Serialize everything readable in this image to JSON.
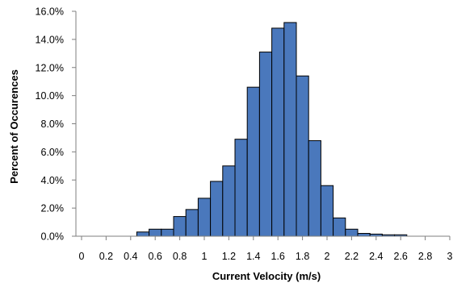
{
  "chart_data": {
    "type": "bar",
    "title": "",
    "xlabel": "Current Velocity (m/s)",
    "ylabel": "Percent of Occurences",
    "x_bins": [
      {
        "start": 0.45,
        "end": 0.55,
        "value": 0.3
      },
      {
        "start": 0.55,
        "end": 0.65,
        "value": 0.5
      },
      {
        "start": 0.65,
        "end": 0.75,
        "value": 0.5
      },
      {
        "start": 0.75,
        "end": 0.85,
        "value": 1.4
      },
      {
        "start": 0.85,
        "end": 0.95,
        "value": 1.9
      },
      {
        "start": 0.95,
        "end": 1.05,
        "value": 2.7
      },
      {
        "start": 1.05,
        "end": 1.15,
        "value": 3.9
      },
      {
        "start": 1.15,
        "end": 1.25,
        "value": 5.0
      },
      {
        "start": 1.25,
        "end": 1.35,
        "value": 6.9
      },
      {
        "start": 1.35,
        "end": 1.45,
        "value": 10.6
      },
      {
        "start": 1.45,
        "end": 1.55,
        "value": 13.1
      },
      {
        "start": 1.55,
        "end": 1.65,
        "value": 14.8
      },
      {
        "start": 1.65,
        "end": 1.75,
        "value": 15.2
      },
      {
        "start": 1.75,
        "end": 1.85,
        "value": 11.4
      },
      {
        "start": 1.85,
        "end": 1.95,
        "value": 6.8
      },
      {
        "start": 1.95,
        "end": 2.05,
        "value": 3.6
      },
      {
        "start": 2.05,
        "end": 2.15,
        "value": 1.3
      },
      {
        "start": 2.15,
        "end": 2.25,
        "value": 0.5
      },
      {
        "start": 2.25,
        "end": 2.35,
        "value": 0.2
      },
      {
        "start": 2.35,
        "end": 2.45,
        "value": 0.15
      },
      {
        "start": 2.45,
        "end": 2.55,
        "value": 0.1
      },
      {
        "start": 2.55,
        "end": 2.65,
        "value": 0.1
      }
    ],
    "x_ticks": [
      "0",
      "0.2",
      "0.4",
      "0.6",
      "0.8",
      "1",
      "1.2",
      "1.4",
      "1.6",
      "1.8",
      "2",
      "2.2",
      "2.4",
      "2.6",
      "2.8",
      "3"
    ],
    "y_ticks": [
      "0.0%",
      "2.0%",
      "4.0%",
      "6.0%",
      "8.0%",
      "10.0%",
      "12.0%",
      "14.0%",
      "16.0%"
    ],
    "xlim": [
      0,
      3
    ],
    "ylim": [
      0,
      16
    ],
    "grid": false,
    "bar_color": "#4a78bc",
    "bar_edge_color": "#000000"
  }
}
